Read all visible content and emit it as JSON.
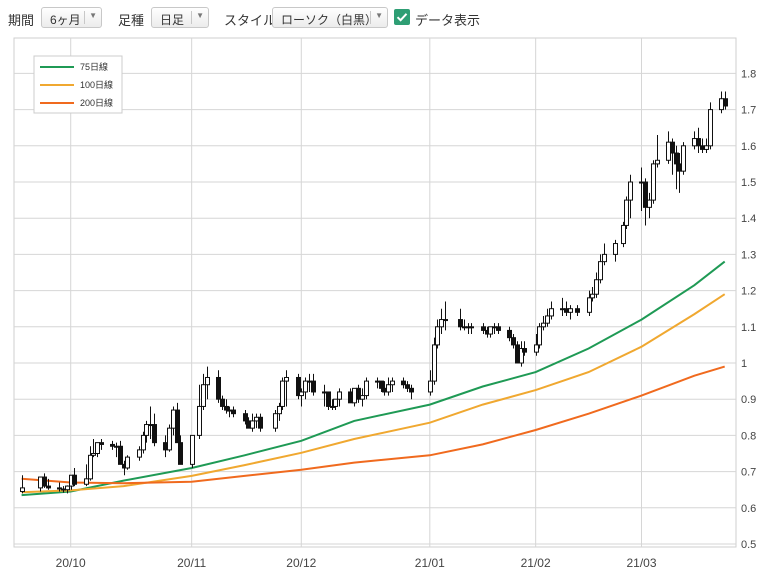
{
  "toolbar": {
    "period_label": "期間",
    "period_value": "6ヶ月",
    "foot_label": "足種",
    "foot_value": "日足",
    "style_label": "スタイル",
    "style_value": "ローソク（白黒）",
    "data_label": "データ表示",
    "data_checked": true
  },
  "chart_data": {
    "type": "candlestick",
    "title": "",
    "xlabel": "",
    "ylabel": "",
    "ylim": [
      0.45,
      1.85
    ],
    "y_ticks": [
      "0.5",
      "0.6",
      "0.7",
      "0.8",
      "0.9",
      "1",
      "1.1",
      "1.2",
      "1.3",
      "1.4",
      "1.5",
      "1.6",
      "1.7",
      "1.8"
    ],
    "x_ticks": [
      {
        "label": "20/10",
        "date": "2020-10-01"
      },
      {
        "label": "20/11",
        "date": "2020-11-02"
      },
      {
        "label": "20/12",
        "date": "2020-12-01"
      },
      {
        "label": "21/01",
        "date": "2021-01-04"
      },
      {
        "label": "21/02",
        "date": "2021-02-01"
      },
      {
        "label": "21/03",
        "date": "2021-03-01"
      }
    ],
    "grid": true,
    "legend_position": "top-left",
    "candles": {
      "dates": [
        "2020-09-18",
        "2020-09-23",
        "2020-09-24",
        "2020-09-25",
        "2020-09-28",
        "2020-09-29",
        "2020-09-30",
        "2020-10-01",
        "2020-10-02",
        "2020-10-05",
        "2020-10-06",
        "2020-10-07",
        "2020-10-08",
        "2020-10-09",
        "2020-10-12",
        "2020-10-13",
        "2020-10-14",
        "2020-10-15",
        "2020-10-16",
        "2020-10-19",
        "2020-10-20",
        "2020-10-21",
        "2020-10-22",
        "2020-10-23",
        "2020-10-26",
        "2020-10-27",
        "2020-10-28",
        "2020-10-29",
        "2020-10-30",
        "2020-11-02",
        "2020-11-04",
        "2020-11-05",
        "2020-11-06",
        "2020-11-09",
        "2020-11-10",
        "2020-11-11",
        "2020-11-12",
        "2020-11-13",
        "2020-11-16",
        "2020-11-17",
        "2020-11-18",
        "2020-11-19",
        "2020-11-20",
        "2020-11-24",
        "2020-11-25",
        "2020-11-26",
        "2020-11-27",
        "2020-11-30",
        "2020-12-01",
        "2020-12-02",
        "2020-12-03",
        "2020-12-04",
        "2020-12-07",
        "2020-12-08",
        "2020-12-09",
        "2020-12-10",
        "2020-12-11",
        "2020-12-14",
        "2020-12-15",
        "2020-12-16",
        "2020-12-17",
        "2020-12-18",
        "2020-12-21",
        "2020-12-22",
        "2020-12-23",
        "2020-12-24",
        "2020-12-25",
        "2020-12-28",
        "2020-12-29",
        "2020-12-30",
        "2021-01-04",
        "2021-01-05",
        "2021-01-06",
        "2021-01-07",
        "2021-01-08",
        "2021-01-12",
        "2021-01-13",
        "2021-01-14",
        "2021-01-15",
        "2021-01-18",
        "2021-01-19",
        "2021-01-20",
        "2021-01-21",
        "2021-01-22",
        "2021-01-25",
        "2021-01-26",
        "2021-01-27",
        "2021-01-28",
        "2021-01-29",
        "2021-02-01",
        "2021-02-02",
        "2021-02-03",
        "2021-02-04",
        "2021-02-05",
        "2021-02-08",
        "2021-02-09",
        "2021-02-10",
        "2021-02-12",
        "2021-02-15",
        "2021-02-16",
        "2021-02-17",
        "2021-02-18",
        "2021-02-19",
        "2021-02-22",
        "2021-02-24",
        "2021-02-25",
        "2021-02-26",
        "2021-03-01",
        "2021-03-02",
        "2021-03-03",
        "2021-03-04",
        "2021-03-05",
        "2021-03-08",
        "2021-03-09",
        "2021-03-10",
        "2021-03-11",
        "2021-03-12",
        "2021-03-15",
        "2021-03-16",
        "2021-03-17",
        "2021-03-18",
        "2021-03-19",
        "2021-03-22",
        "2021-03-23"
      ],
      "open": [
        0.645,
        0.655,
        0.685,
        0.66,
        0.655,
        0.652,
        0.65,
        0.66,
        0.69,
        0.665,
        0.68,
        0.745,
        0.75,
        0.78,
        0.775,
        0.77,
        0.77,
        0.72,
        0.71,
        0.74,
        0.76,
        0.8,
        0.83,
        0.83,
        0.78,
        0.76,
        0.82,
        0.87,
        0.78,
        0.72,
        0.8,
        0.88,
        0.94,
        0.96,
        0.9,
        0.88,
        0.87,
        0.87,
        0.86,
        0.84,
        0.82,
        0.84,
        0.85,
        0.82,
        0.86,
        0.88,
        0.95,
        0.96,
        0.91,
        0.92,
        0.95,
        0.95,
        0.92,
        0.92,
        0.88,
        0.88,
        0.9,
        0.92,
        0.89,
        0.93,
        0.9,
        0.91,
        0.95,
        0.95,
        0.93,
        0.92,
        0.94,
        0.95,
        0.94,
        0.93,
        0.92,
        0.95,
        1.05,
        1.1,
        1.12,
        1.12,
        1.1,
        1.1,
        1.1,
        1.1,
        1.09,
        1.08,
        1.1,
        1.1,
        1.09,
        1.07,
        1.05,
        1.0,
        1.04,
        1.03,
        1.05,
        1.1,
        1.11,
        1.13,
        1.15,
        1.15,
        1.14,
        1.15,
        1.14,
        1.18,
        1.19,
        1.23,
        1.28,
        1.3,
        1.33,
        1.38,
        1.45,
        1.5,
        1.5,
        1.43,
        1.45,
        1.55,
        1.56,
        1.61,
        1.58,
        1.55,
        1.53,
        1.6,
        1.62,
        1.6,
        1.59,
        1.6,
        1.7,
        1.73
      ],
      "high": [
        0.69,
        0.68,
        0.695,
        0.68,
        0.67,
        0.66,
        0.662,
        0.68,
        0.71,
        0.72,
        0.77,
        0.79,
        0.78,
        0.79,
        0.785,
        0.78,
        0.785,
        0.73,
        0.745,
        0.77,
        0.81,
        0.84,
        0.88,
        0.86,
        0.8,
        0.83,
        0.88,
        0.89,
        0.8,
        0.8,
        0.94,
        0.97,
        0.99,
        0.98,
        0.91,
        0.9,
        0.88,
        0.88,
        0.87,
        0.85,
        0.86,
        0.86,
        0.86,
        0.87,
        0.89,
        0.96,
        0.98,
        0.97,
        0.93,
        0.96,
        0.97,
        0.97,
        0.94,
        0.92,
        0.9,
        0.9,
        0.93,
        0.93,
        0.93,
        0.94,
        0.93,
        0.96,
        0.96,
        0.95,
        0.95,
        0.96,
        0.96,
        0.96,
        0.95,
        0.94,
        0.98,
        1.07,
        1.12,
        1.15,
        1.17,
        1.15,
        1.12,
        1.11,
        1.11,
        1.11,
        1.1,
        1.1,
        1.11,
        1.11,
        1.1,
        1.08,
        1.06,
        1.06,
        1.06,
        1.08,
        1.11,
        1.13,
        1.15,
        1.17,
        1.18,
        1.17,
        1.16,
        1.16,
        1.2,
        1.21,
        1.25,
        1.3,
        1.33,
        1.34,
        1.39,
        1.46,
        1.52,
        1.54,
        1.51,
        1.47,
        1.56,
        1.63,
        1.64,
        1.62,
        1.6,
        1.58,
        1.61,
        1.64,
        1.65,
        1.62,
        1.62,
        1.72,
        1.75,
        1.75
      ],
      "low": [
        0.64,
        0.645,
        0.655,
        0.65,
        0.645,
        0.642,
        0.64,
        0.65,
        0.66,
        0.66,
        0.675,
        0.74,
        0.74,
        0.76,
        0.76,
        0.74,
        0.72,
        0.69,
        0.705,
        0.73,
        0.75,
        0.78,
        0.79,
        0.77,
        0.74,
        0.755,
        0.8,
        0.78,
        0.72,
        0.71,
        0.79,
        0.87,
        0.9,
        0.89,
        0.87,
        0.86,
        0.85,
        0.85,
        0.83,
        0.82,
        0.81,
        0.82,
        0.81,
        0.81,
        0.84,
        0.87,
        0.88,
        0.9,
        0.88,
        0.9,
        0.92,
        0.91,
        0.88,
        0.87,
        0.87,
        0.87,
        0.88,
        0.89,
        0.88,
        0.89,
        0.88,
        0.9,
        0.93,
        0.92,
        0.91,
        0.91,
        0.92,
        0.93,
        0.92,
        0.9,
        0.91,
        0.94,
        1.04,
        1.08,
        1.09,
        1.09,
        1.09,
        1.08,
        1.08,
        1.08,
        1.07,
        1.07,
        1.08,
        1.08,
        1.06,
        1.04,
        1.0,
        0.99,
        1.02,
        1.02,
        1.04,
        1.09,
        1.1,
        1.12,
        1.13,
        1.13,
        1.12,
        1.13,
        1.13,
        1.17,
        1.18,
        1.22,
        1.27,
        1.28,
        1.32,
        1.37,
        1.4,
        1.42,
        1.38,
        1.4,
        1.44,
        1.54,
        1.55,
        1.52,
        1.48,
        1.47,
        1.52,
        1.59,
        1.58,
        1.58,
        1.58,
        1.59,
        1.69,
        1.7
      ],
      "close": [
        0.655,
        0.685,
        0.66,
        0.655,
        0.652,
        0.65,
        0.66,
        0.69,
        0.665,
        0.68,
        0.745,
        0.75,
        0.78,
        0.775,
        0.77,
        0.77,
        0.72,
        0.71,
        0.74,
        0.76,
        0.8,
        0.83,
        0.83,
        0.78,
        0.76,
        0.82,
        0.87,
        0.78,
        0.72,
        0.8,
        0.88,
        0.94,
        0.96,
        0.9,
        0.88,
        0.87,
        0.87,
        0.86,
        0.84,
        0.82,
        0.84,
        0.85,
        0.82,
        0.86,
        0.88,
        0.95,
        0.96,
        0.91,
        0.92,
        0.95,
        0.95,
        0.92,
        0.92,
        0.88,
        0.88,
        0.9,
        0.92,
        0.89,
        0.93,
        0.9,
        0.91,
        0.95,
        0.95,
        0.93,
        0.92,
        0.94,
        0.95,
        0.94,
        0.93,
        0.92,
        0.95,
        1.05,
        1.1,
        1.12,
        1.12,
        1.1,
        1.1,
        1.1,
        1.1,
        1.09,
        1.08,
        1.1,
        1.1,
        1.09,
        1.07,
        1.05,
        1.0,
        1.04,
        1.03,
        1.05,
        1.1,
        1.11,
        1.13,
        1.15,
        1.15,
        1.14,
        1.15,
        1.14,
        1.18,
        1.19,
        1.23,
        1.28,
        1.3,
        1.33,
        1.38,
        1.45,
        1.5,
        1.5,
        1.43,
        1.45,
        1.55,
        1.56,
        1.61,
        1.58,
        1.55,
        1.53,
        1.6,
        1.62,
        1.6,
        1.59,
        1.6,
        1.7,
        1.73,
        1.71
      ]
    },
    "series": [
      {
        "name": "75日線",
        "color": "#1f9a55",
        "dates": [
          "2020-09-18",
          "2020-10-01",
          "2020-10-15",
          "2020-11-02",
          "2020-11-16",
          "2020-12-01",
          "2020-12-15",
          "2021-01-04",
          "2021-01-18",
          "2021-02-01",
          "2021-02-15",
          "2021-03-01",
          "2021-03-15",
          "2021-03-23"
        ],
        "values": [
          0.635,
          0.645,
          0.675,
          0.71,
          0.745,
          0.785,
          0.84,
          0.885,
          0.935,
          0.975,
          1.04,
          1.12,
          1.215,
          1.28
        ]
      },
      {
        "name": "100日線",
        "color": "#f0a830",
        "dates": [
          "2020-09-18",
          "2020-10-01",
          "2020-10-15",
          "2020-11-02",
          "2020-11-16",
          "2020-12-01",
          "2020-12-15",
          "2021-01-04",
          "2021-01-18",
          "2021-02-01",
          "2021-02-15",
          "2021-03-01",
          "2021-03-15",
          "2021-03-23"
        ],
        "values": [
          0.643,
          0.648,
          0.66,
          0.688,
          0.718,
          0.752,
          0.79,
          0.835,
          0.885,
          0.925,
          0.975,
          1.045,
          1.135,
          1.19
        ]
      },
      {
        "name": "200日線",
        "color": "#f06a1e",
        "dates": [
          "2020-09-18",
          "2020-10-01",
          "2020-10-15",
          "2020-11-02",
          "2020-11-16",
          "2020-12-01",
          "2020-12-15",
          "2021-01-04",
          "2021-01-18",
          "2021-02-01",
          "2021-02-15",
          "2021-03-01",
          "2021-03-15",
          "2021-03-23"
        ],
        "values": [
          0.68,
          0.67,
          0.668,
          0.672,
          0.688,
          0.705,
          0.725,
          0.745,
          0.775,
          0.815,
          0.86,
          0.91,
          0.965,
          0.99
        ]
      }
    ]
  }
}
